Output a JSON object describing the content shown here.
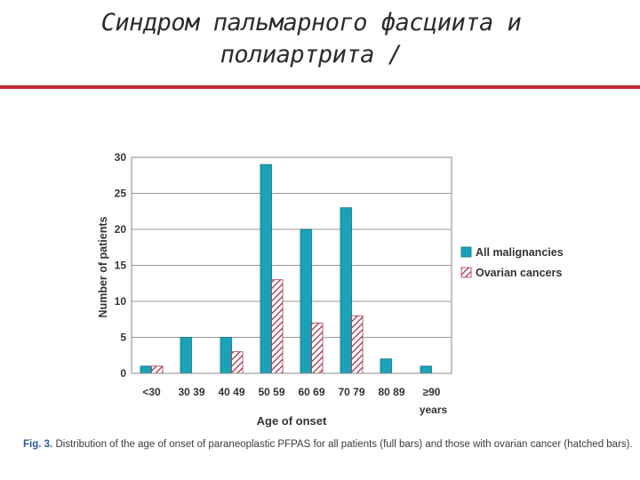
{
  "slide": {
    "title_line1": "Синдром пальмарного фасциита и",
    "title_line2": "полиартрита /"
  },
  "figure": {
    "caption_label": "Fig. 3.",
    "caption_text": "Distribution of the age of onset of paraneoplastic PFPAS for all patients (full bars) and those with ovarian cancer (hatched bars)."
  },
  "chart_data": {
    "type": "bar",
    "title": "",
    "xlabel": "Age of onset",
    "ylabel": "Number of patients",
    "categories": [
      "<30",
      "30 39",
      "40 49",
      "50 59",
      "60 69",
      "70 79",
      "80 89",
      "≥90 years"
    ],
    "ylim": [
      0,
      30
    ],
    "yticks": [
      "0",
      "5",
      "10",
      "15",
      "20",
      "25",
      "30"
    ],
    "grid": true,
    "legend_position": "right",
    "series": [
      {
        "name": "All malignancies",
        "values": [
          1,
          5,
          5,
          29,
          20,
          23,
          2,
          1
        ],
        "color": "#1aa3b8",
        "pattern": "solid"
      },
      {
        "name": "Ovarian cancers",
        "values": [
          1,
          0,
          3,
          13,
          7,
          8,
          0,
          0
        ],
        "color": "#a8324a",
        "pattern": "hatched"
      }
    ]
  }
}
